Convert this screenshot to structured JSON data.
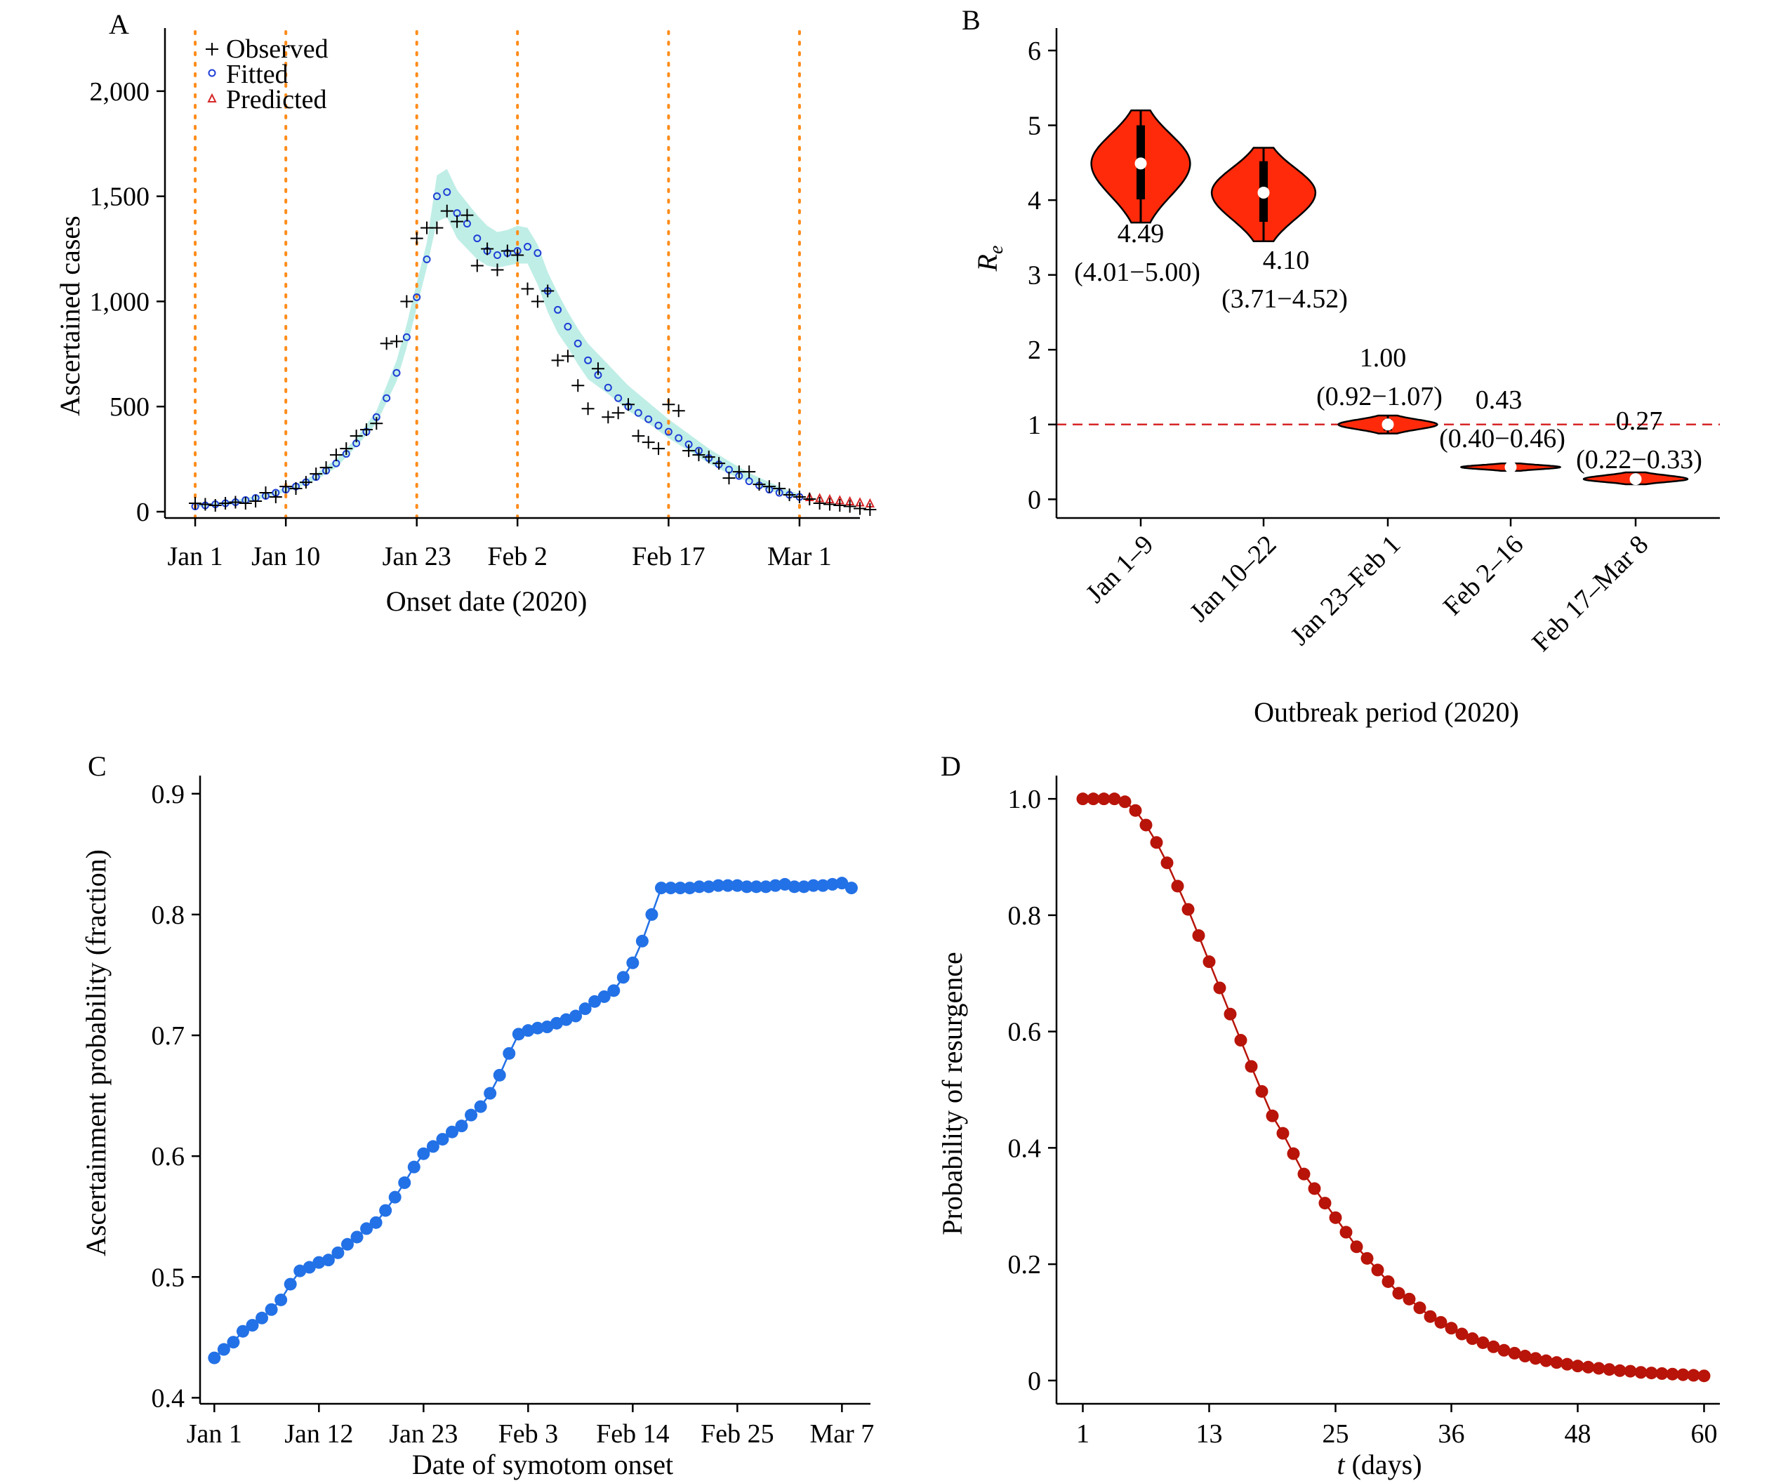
{
  "colors": {
    "observed": "#000000",
    "fitted": "#1f3fd6",
    "predicted": "#d62728",
    "band": "#bfeee6",
    "vline": "#ff8c1a",
    "violin": "#ff2a0a",
    "threshold": "#d62728",
    "panel_c": "#2371e6",
    "panel_d": "#b81409"
  },
  "chart_data": [
    {
      "panel": "A",
      "type": "scatter",
      "ylabel": "Ascertained cases",
      "xlabel": "Onset date (2020)",
      "x_unit": "day of 2020 (Jan 1 = 1)",
      "xlim": [
        -2,
        67
      ],
      "ylim": [
        -30,
        2300
      ],
      "x_ticks": [
        {
          "x": 1,
          "label": "Jan 1"
        },
        {
          "x": 10,
          "label": "Jan 10"
        },
        {
          "x": 23,
          "label": "Jan 23"
        },
        {
          "x": 33,
          "label": "Feb 2"
        },
        {
          "x": 48,
          "label": "Feb 17"
        },
        {
          "x": 61,
          "label": "Mar 1"
        }
      ],
      "y_ticks": [
        {
          "y": 0,
          "label": "0"
        },
        {
          "y": 500,
          "label": "500"
        },
        {
          "y": 1000,
          "label": "1,000"
        },
        {
          "y": 1500,
          "label": "1,500"
        },
        {
          "y": 2000,
          "label": "2,000"
        }
      ],
      "vlines": [
        1,
        10,
        23,
        33,
        48,
        61
      ],
      "legend": [
        "Observed",
        "Fitted",
        "Predicted"
      ],
      "legend_position": "top-left",
      "series": [
        {
          "name": "Observed",
          "marker": "plus",
          "x": [
            1,
            2,
            3,
            4,
            5,
            6,
            7,
            8,
            9,
            10,
            11,
            12,
            13,
            14,
            15,
            16,
            17,
            18,
            19,
            20,
            21,
            22,
            23,
            24,
            25,
            26,
            27,
            28,
            29,
            30,
            31,
            32,
            33,
            34,
            35,
            36,
            37,
            38,
            39,
            40,
            41,
            42,
            43,
            44,
            45,
            46,
            47,
            48,
            49,
            50,
            51,
            52,
            53,
            54,
            55,
            56,
            57,
            58,
            59,
            60,
            61,
            62,
            63,
            64,
            65,
            66,
            67,
            68
          ],
          "y": [
            40,
            35,
            30,
            40,
            45,
            40,
            50,
            90,
            70,
            120,
            110,
            140,
            180,
            210,
            270,
            300,
            360,
            390,
            420,
            800,
            810,
            1000,
            1300,
            1350,
            1350,
            1430,
            1380,
            1410,
            1170,
            1250,
            1150,
            1240,
            1220,
            1060,
            1000,
            1050,
            720,
            740,
            600,
            490,
            680,
            450,
            470,
            510,
            360,
            330,
            300,
            510,
            480,
            290,
            270,
            260,
            230,
            160,
            190,
            190,
            130,
            120,
            110,
            80,
            70,
            60,
            40,
            35,
            30,
            25,
            15,
            10
          ]
        },
        {
          "name": "Fitted",
          "marker": "circle",
          "x": [
            1,
            2,
            3,
            4,
            5,
            6,
            7,
            8,
            9,
            10,
            11,
            12,
            13,
            14,
            15,
            16,
            17,
            18,
            19,
            20,
            21,
            22,
            23,
            24,
            25,
            26,
            27,
            28,
            29,
            30,
            31,
            32,
            33,
            34,
            35,
            36,
            37,
            38,
            39,
            40,
            41,
            42,
            43,
            44,
            45,
            46,
            47,
            48,
            49,
            50,
            51,
            52,
            53,
            54,
            55,
            56,
            57,
            58,
            59,
            60,
            61
          ],
          "y": [
            25,
            30,
            35,
            40,
            45,
            55,
            65,
            75,
            90,
            105,
            120,
            140,
            165,
            195,
            230,
            275,
            325,
            380,
            450,
            540,
            660,
            830,
            1020,
            1200,
            1500,
            1520,
            1420,
            1370,
            1300,
            1240,
            1220,
            1230,
            1240,
            1260,
            1230,
            1050,
            960,
            880,
            800,
            720,
            650,
            590,
            540,
            500,
            470,
            440,
            410,
            380,
            350,
            320,
            290,
            255,
            225,
            200,
            170,
            145,
            125,
            105,
            90,
            80,
            70
          ]
        },
        {
          "name": "Predicted",
          "marker": "triangle",
          "x": [
            62,
            63,
            64,
            65,
            66,
            67,
            68
          ],
          "y": [
            70,
            65,
            60,
            55,
            50,
            45,
            40
          ]
        }
      ],
      "band": {
        "x": [
          1,
          3,
          5,
          7,
          9,
          11,
          13,
          15,
          17,
          19,
          21,
          22,
          23,
          24,
          25,
          26,
          27,
          28,
          29,
          30,
          31,
          32,
          33,
          34,
          35,
          36,
          37,
          38,
          39,
          40,
          42,
          44,
          46,
          48,
          50,
          52,
          54,
          56,
          58,
          60,
          61
        ],
        "lower": [
          20,
          28,
          35,
          55,
          80,
          110,
          150,
          210,
          310,
          420,
          620,
          780,
          970,
          1160,
          1380,
          1400,
          1300,
          1250,
          1200,
          1170,
          1160,
          1170,
          1180,
          1180,
          1080,
          950,
          850,
          780,
          700,
          630,
          560,
          480,
          420,
          350,
          290,
          230,
          180,
          140,
          100,
          75,
          65
        ],
        "upper": [
          35,
          42,
          55,
          75,
          100,
          130,
          180,
          250,
          350,
          480,
          720,
          890,
          1090,
          1280,
          1600,
          1630,
          1530,
          1470,
          1410,
          1360,
          1330,
          1340,
          1360,
          1350,
          1270,
          1140,
          1040,
          950,
          870,
          800,
          700,
          600,
          520,
          440,
          370,
          300,
          240,
          185,
          140,
          100,
          85
        ]
      }
    },
    {
      "panel": "B",
      "type": "violin",
      "ylabel": "Re",
      "xlabel": "Outbreak period (2020)",
      "ylim": [
        -0.25,
        6.3
      ],
      "y_ticks": [
        0,
        1,
        2,
        3,
        4,
        5,
        6
      ],
      "threshold": 1,
      "categories": [
        "Jan 1–9",
        "Jan 10–22",
        "Jan 23–Feb 1",
        "Feb 2–16",
        "Feb 17–Mar 8"
      ],
      "values": [
        4.49,
        4.1,
        1.0,
        0.43,
        0.27
      ],
      "labels": [
        "4.49",
        "4.10",
        "1.00",
        "0.43",
        "0.27"
      ],
      "ci_labels": [
        "(4.01−5.00)",
        "(3.71−4.52)",
        "(0.92−1.07)",
        "(0.40−0.46)",
        "(0.22−0.33)"
      ],
      "ci": [
        [
          4.01,
          5.0
        ],
        [
          3.71,
          4.52
        ],
        [
          0.92,
          1.07
        ],
        [
          0.4,
          0.46
        ],
        [
          0.22,
          0.33
        ]
      ],
      "range": [
        [
          3.7,
          5.2
        ],
        [
          3.45,
          4.7
        ],
        [
          0.88,
          1.12
        ],
        [
          0.38,
          0.48
        ],
        [
          0.2,
          0.36
        ]
      ],
      "width": [
        0.4,
        0.42,
        0.4,
        0.4,
        0.42
      ]
    },
    {
      "panel": "C",
      "type": "line",
      "ylabel": "Ascertainment probability (fraction)",
      "xlabel": "Date of symotom onset",
      "x_unit": "day of 2020 (Jan 1 = 1)",
      "xlim": [
        -0.5,
        70
      ],
      "ylim": [
        0.395,
        0.915
      ],
      "x_ticks": [
        {
          "x": 1,
          "label": "Jan 1"
        },
        {
          "x": 12,
          "label": "Jan 12"
        },
        {
          "x": 23,
          "label": "Jan 23"
        },
        {
          "x": 34,
          "label": "Feb 3"
        },
        {
          "x": 45,
          "label": "Feb 14"
        },
        {
          "x": 56,
          "label": "Feb 25"
        },
        {
          "x": 67,
          "label": "Mar 7"
        }
      ],
      "y_ticks": [
        0.4,
        0.5,
        0.6,
        0.7,
        0.8,
        0.9
      ],
      "x": [
        1,
        2,
        3,
        4,
        5,
        6,
        7,
        8,
        9,
        10,
        11,
        12,
        13,
        14,
        15,
        16,
        17,
        18,
        19,
        20,
        21,
        22,
        23,
        24,
        25,
        26,
        27,
        28,
        29,
        30,
        31,
        32,
        33,
        34,
        35,
        36,
        37,
        38,
        39,
        40,
        41,
        42,
        43,
        44,
        45,
        46,
        47,
        48,
        49,
        50,
        51,
        52,
        53,
        54,
        55,
        56,
        57,
        58,
        59,
        60,
        61,
        62,
        63,
        64,
        65,
        66,
        67,
        68
      ],
      "y": [
        0.433,
        0.44,
        0.446,
        0.455,
        0.46,
        0.466,
        0.473,
        0.481,
        0.494,
        0.505,
        0.508,
        0.512,
        0.514,
        0.52,
        0.527,
        0.533,
        0.54,
        0.545,
        0.555,
        0.566,
        0.578,
        0.591,
        0.602,
        0.608,
        0.614,
        0.62,
        0.625,
        0.634,
        0.641,
        0.652,
        0.667,
        0.685,
        0.701,
        0.704,
        0.706,
        0.707,
        0.71,
        0.713,
        0.716,
        0.722,
        0.728,
        0.732,
        0.737,
        0.748,
        0.76,
        0.778,
        0.8,
        0.822,
        0.822,
        0.822,
        0.822,
        0.823,
        0.823,
        0.824,
        0.824,
        0.824,
        0.823,
        0.823,
        0.823,
        0.824,
        0.825,
        0.823,
        0.823,
        0.824,
        0.824,
        0.825,
        0.826,
        0.822
      ]
    },
    {
      "panel": "D",
      "type": "line",
      "ylabel": "Probability of resurgence",
      "xlabel_italic": "t",
      "xlabel_rest": " (days)",
      "xlim": [
        -1.5,
        61.5
      ],
      "ylim": [
        -0.04,
        1.04
      ],
      "x_ticks": [
        1,
        13,
        25,
        36,
        48,
        60
      ],
      "y_ticks": [
        0,
        0.2,
        0.4,
        0.6,
        0.8,
        1.0
      ],
      "x": [
        1,
        2,
        3,
        4,
        5,
        6,
        7,
        8,
        9,
        10,
        11,
        12,
        13,
        14,
        15,
        16,
        17,
        18,
        19,
        20,
        21,
        22,
        23,
        24,
        25,
        26,
        27,
        28,
        29,
        30,
        31,
        32,
        33,
        34,
        35,
        36,
        37,
        38,
        39,
        40,
        41,
        42,
        43,
        44,
        45,
        46,
        47,
        48,
        49,
        50,
        51,
        52,
        53,
        54,
        55,
        56,
        57,
        58,
        59,
        60
      ],
      "y": [
        1.0,
        1.0,
        1.0,
        1.0,
        0.995,
        0.98,
        0.955,
        0.925,
        0.89,
        0.85,
        0.81,
        0.765,
        0.72,
        0.675,
        0.63,
        0.585,
        0.54,
        0.497,
        0.455,
        0.425,
        0.39,
        0.355,
        0.33,
        0.305,
        0.28,
        0.255,
        0.23,
        0.21,
        0.19,
        0.17,
        0.15,
        0.14,
        0.125,
        0.11,
        0.1,
        0.09,
        0.08,
        0.072,
        0.065,
        0.058,
        0.052,
        0.047,
        0.042,
        0.038,
        0.034,
        0.031,
        0.028,
        0.025,
        0.023,
        0.021,
        0.019,
        0.017,
        0.016,
        0.014,
        0.013,
        0.012,
        0.011,
        0.01,
        0.009,
        0.008
      ]
    }
  ]
}
